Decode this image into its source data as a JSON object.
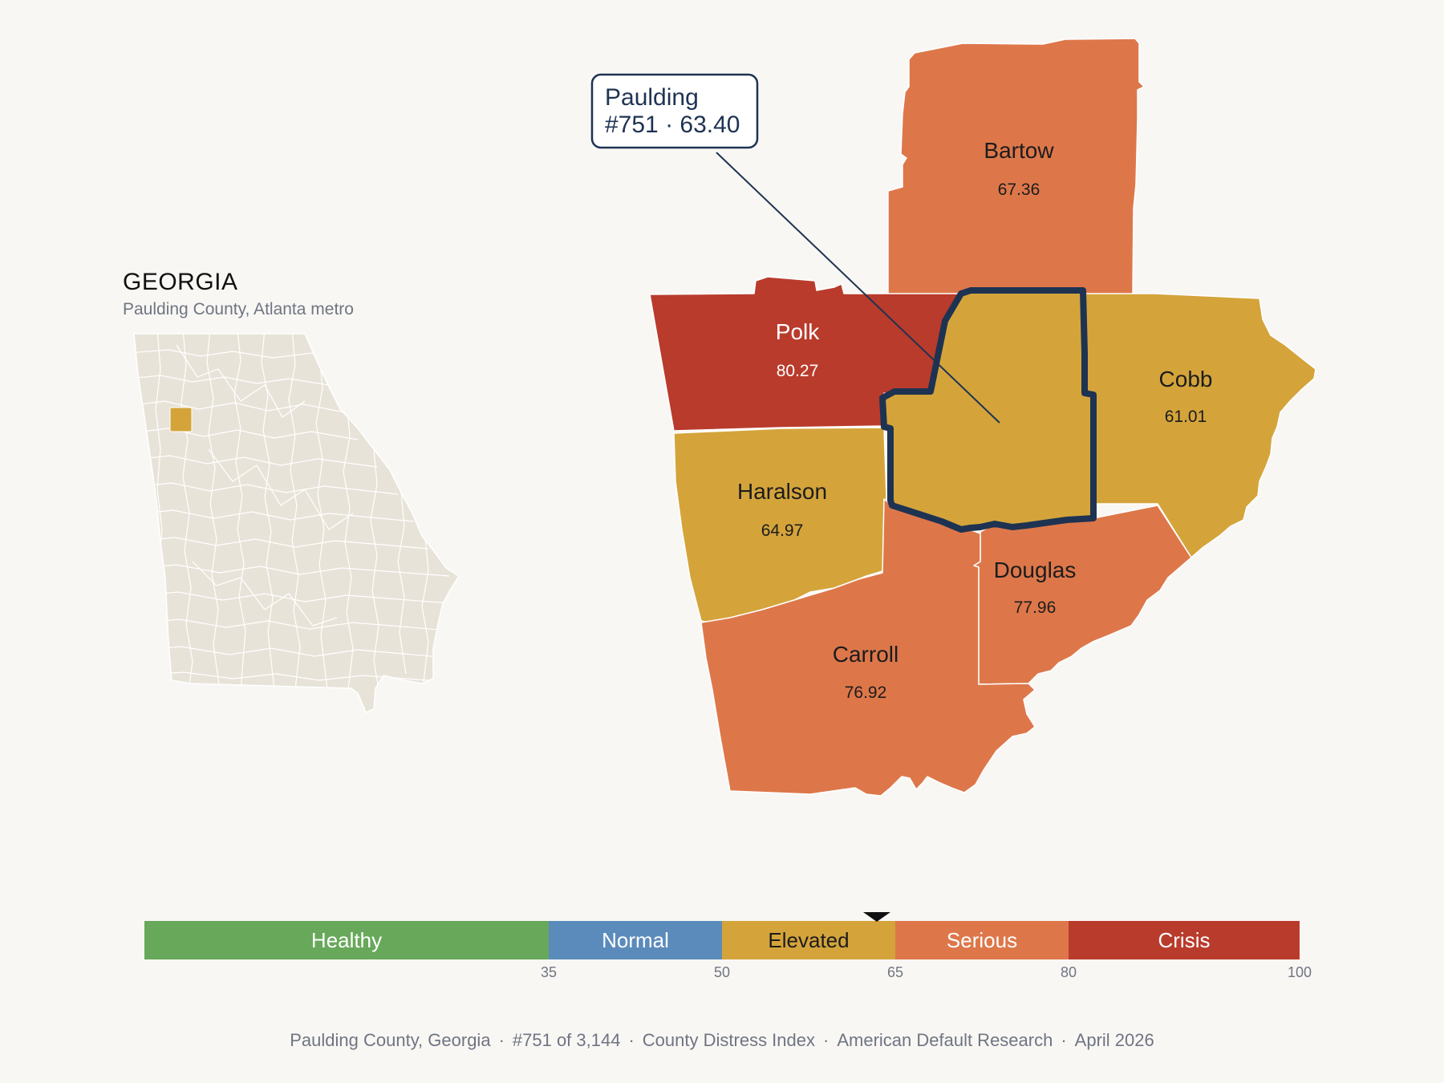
{
  "inset": {
    "title": "GEORGIA",
    "subtitle": "Paulding County, Atlanta metro"
  },
  "counties": [
    {
      "name": "Bartow",
      "value": "67.36",
      "category": "Serious"
    },
    {
      "name": "Polk",
      "value": "80.27",
      "category": "Crisis"
    },
    {
      "name": "Cobb",
      "value": "61.01",
      "category": "Elevated"
    },
    {
      "name": "Haralson",
      "value": "64.97",
      "category": "Elevated"
    },
    {
      "name": "Douglas",
      "value": "77.96",
      "category": "Serious"
    },
    {
      "name": "Carroll",
      "value": "76.92",
      "category": "Serious"
    }
  ],
  "focus": {
    "name": "Paulding",
    "rank_value": "#751 · 63.40",
    "value": 63.4,
    "category": "Elevated"
  },
  "scale": {
    "bands": [
      {
        "label": "Healthy",
        "from": 0,
        "to": 35,
        "color": "#67a85a"
      },
      {
        "label": "Normal",
        "from": 35,
        "to": 50,
        "color": "#5b8bbb"
      },
      {
        "label": "Elevated",
        "from": 50,
        "to": 65,
        "color": "#d4a43b"
      },
      {
        "label": "Serious",
        "from": 65,
        "to": 80,
        "color": "#dd774a"
      },
      {
        "label": "Crisis",
        "from": 80,
        "to": 100,
        "color": "#b93b2c"
      }
    ],
    "ticks": [
      "35",
      "50",
      "65",
      "80",
      "100"
    ],
    "marker_value": 63.4
  },
  "colors": {
    "background": "#f9f7f4",
    "focus_outline": "#1e3352",
    "inset_fill": "#e8e3d8",
    "inset_highlight": "#d4a43b"
  },
  "footer": {
    "county": "Paulding County, Georgia",
    "rank": "#751 of 3,144",
    "index": "County Distress Index",
    "source": "American Default Research",
    "date": "April 2026"
  }
}
